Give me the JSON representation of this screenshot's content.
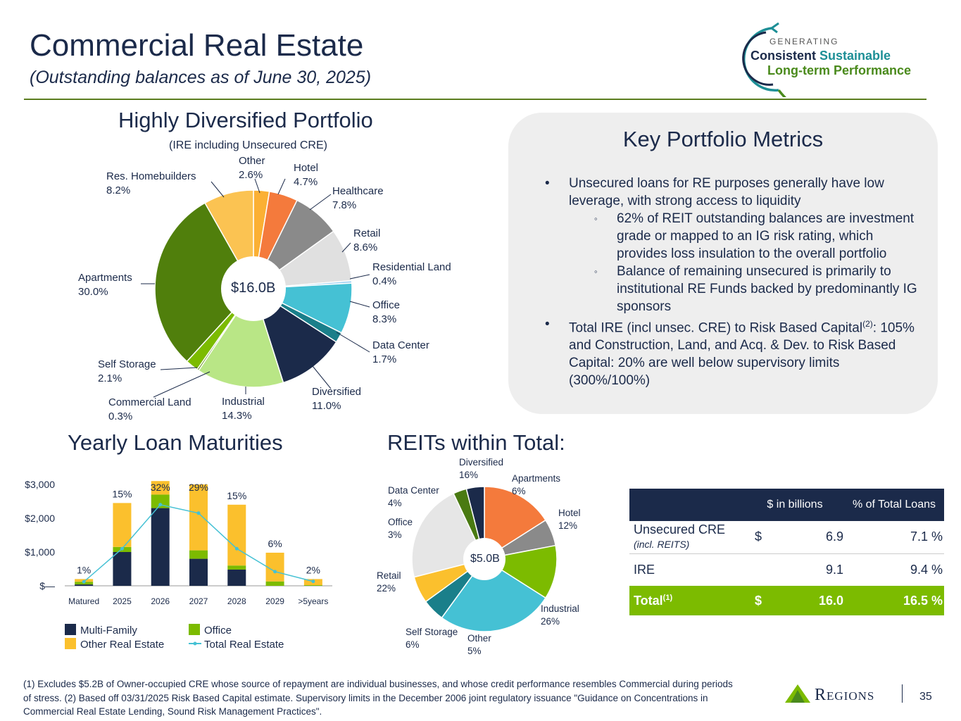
{
  "header": {
    "title": "Commercial Real Estate",
    "subtitle": "(Outstanding balances as of June 30, 2025)",
    "logo_line1": "GENERATING",
    "logo_line2a": "Consistent",
    "logo_line2b": "Sustainable",
    "logo_line3": "Long-term Performance"
  },
  "portfolio": {
    "heading": "Highly Diversified Portfolio",
    "note": "(IRE including Unsecured CRE)",
    "center_label": "$16.0B"
  },
  "maturities": {
    "heading": "Yearly Loan Maturities"
  },
  "reits": {
    "heading": "REITs within Total:",
    "center_label": "$5.0B"
  },
  "metrics": {
    "title": "Key Portfolio Metrics",
    "bullet1": "Unsecured loans for RE purposes generally have low leverage, with strong access to liquidity",
    "sub1": "62% of REIT outstanding balances are investment grade or mapped to an IG risk rating, which provides loss insulation to the overall portfolio",
    "sub2": "Balance of remaining unsecured is primarily to institutional RE Funds backed by predominantly IG sponsors",
    "bullet2_a": "Total IRE (incl unsec. CRE) to Risk Based Capital",
    "bullet2_sup": "(2)",
    "bullet2_b": ": 105% and Construction, Land, and Acq. & Dev. to Risk Based Capital: 20% are well below supervisory limits (300%/100%)"
  },
  "table": {
    "col1": "$ in billions",
    "col2": "% of Total Loans",
    "rows": [
      {
        "label": "Unsecured CRE",
        "sublabel": "(incl. REITS)",
        "cur": "$",
        "value": "6.9",
        "pct": "7.1 %"
      },
      {
        "label": "IRE",
        "sublabel": "",
        "cur": "",
        "value": "9.1",
        "pct": "9.4 %"
      }
    ],
    "total": {
      "label": "Total",
      "sup": "(1)",
      "cur": "$",
      "value": "16.0",
      "pct": "16.5 %"
    }
  },
  "footnote": "(1) Excludes $5.2B of Owner-occupied CRE whose source of repayment are individual businesses, and whose credit performance resembles Commercial during periods of stress. (2) Based off 03/31/2025 Risk Based Capital estimate. Supervisory limits in the December 2006 joint regulatory issuance \"Guidance on Concentrations in Commercial Real Estate Lending, Sound Risk Management Practices\".",
  "footer": {
    "brand": "Regions",
    "page": "35"
  },
  "colors": {
    "navy": "#1b2a4a",
    "green": "#7cbb00",
    "yellow": "#fbc02d",
    "teal": "#45c1d4"
  },
  "chart_data": [
    {
      "type": "pie",
      "title": "Highly Diversified Portfolio",
      "subtitle": "(IRE including Unsecured CRE)",
      "center_label": "$16.0B",
      "slices": [
        {
          "name": "Other",
          "value": 2.6,
          "label": "2.6%",
          "color": "#fbb034"
        },
        {
          "name": "Hotel",
          "value": 4.7,
          "label": "4.7%",
          "color": "#f47a3c"
        },
        {
          "name": "Healthcare",
          "value": 7.8,
          "label": "7.8%",
          "color": "#8a8a8a"
        },
        {
          "name": "Retail",
          "value": 8.6,
          "label": "8.6%",
          "color": "#e0e0e0"
        },
        {
          "name": "Residential Land",
          "value": 0.4,
          "label": "0.4%",
          "color": "#9dd0f0"
        },
        {
          "name": "Office",
          "value": 8.3,
          "label": "8.3%",
          "color": "#45c1d4"
        },
        {
          "name": "Data Center",
          "value": 1.7,
          "label": "1.7%",
          "color": "#1a7f8a"
        },
        {
          "name": "Diversified",
          "value": 11.0,
          "label": "11.0%",
          "color": "#1b2a4a"
        },
        {
          "name": "Industrial",
          "value": 14.3,
          "label": "14.3%",
          "color": "#b9e686"
        },
        {
          "name": "Commercial Land",
          "value": 0.3,
          "label": "0.3%",
          "color": "#5b8a10"
        },
        {
          "name": "Self Storage",
          "value": 2.1,
          "label": "2.1%",
          "color": "#7cbb00"
        },
        {
          "name": "Apartments",
          "value": 30.0,
          "label": "30.0%",
          "color": "#507f0c"
        },
        {
          "name": "Res. Homebuilders",
          "value": 8.2,
          "label": "8.2%",
          "color": "#fbc352"
        }
      ]
    },
    {
      "type": "bar",
      "title": "Yearly Loan Maturities",
      "categories": [
        "Matured",
        "2025",
        "2026",
        "2027",
        "2028",
        "2029",
        ">5years"
      ],
      "stacked": true,
      "series": [
        {
          "name": "Multi-Family",
          "color": "#1b2a4a",
          "values": [
            40,
            1000,
            2300,
            800,
            480,
            0,
            0
          ]
        },
        {
          "name": "Office",
          "color": "#7cbb00",
          "values": [
            80,
            150,
            400,
            250,
            120,
            130,
            20
          ]
        },
        {
          "name": "Other Real Estate",
          "color": "#fbc02d",
          "values": [
            80,
            1300,
            400,
            1950,
            1800,
            850,
            180
          ]
        }
      ],
      "line": {
        "name": "Total Real Estate",
        "color": "#45c1d4",
        "values": [
          120,
          1100,
          2400,
          2150,
          1100,
          420,
          130
        ]
      },
      "bar_labels": [
        "1%",
        "15%",
        "32%",
        "29%",
        "15%",
        "6%",
        "2%"
      ],
      "ytick_labels": [
        "$—",
        "$1,000",
        "$2,000",
        "$3,000"
      ],
      "yticks": [
        0,
        1000,
        2000,
        3000
      ],
      "ylim": [
        0,
        3000
      ],
      "legend": "bottom"
    },
    {
      "type": "pie",
      "title": "REITs within Total:",
      "center_label": "$5.0B",
      "slices": [
        {
          "name": "Diversified",
          "value": 16,
          "label": "16%",
          "color": "#f47a3c"
        },
        {
          "name": "Apartments",
          "value": 6,
          "label": "6%",
          "color": "#8a8a8a"
        },
        {
          "name": "Hotel",
          "value": 12,
          "label": "12%",
          "color": "#7cbb00"
        },
        {
          "name": "Industrial",
          "value": 26,
          "label": "26%",
          "color": "#45c1d4"
        },
        {
          "name": "Other",
          "value": 5,
          "label": "5%",
          "color": "#1a7f8a"
        },
        {
          "name": "Self Storage",
          "value": 6,
          "label": "6%",
          "color": "#fbc02d"
        },
        {
          "name": "Retail",
          "value": 22,
          "label": "22%",
          "color": "#e6e6e6"
        },
        {
          "name": "Office",
          "value": 3,
          "label": "3%",
          "color": "#4a7a12"
        },
        {
          "name": "Data Center",
          "value": 4,
          "label": "4%",
          "color": "#1b2a4a"
        }
      ]
    }
  ]
}
